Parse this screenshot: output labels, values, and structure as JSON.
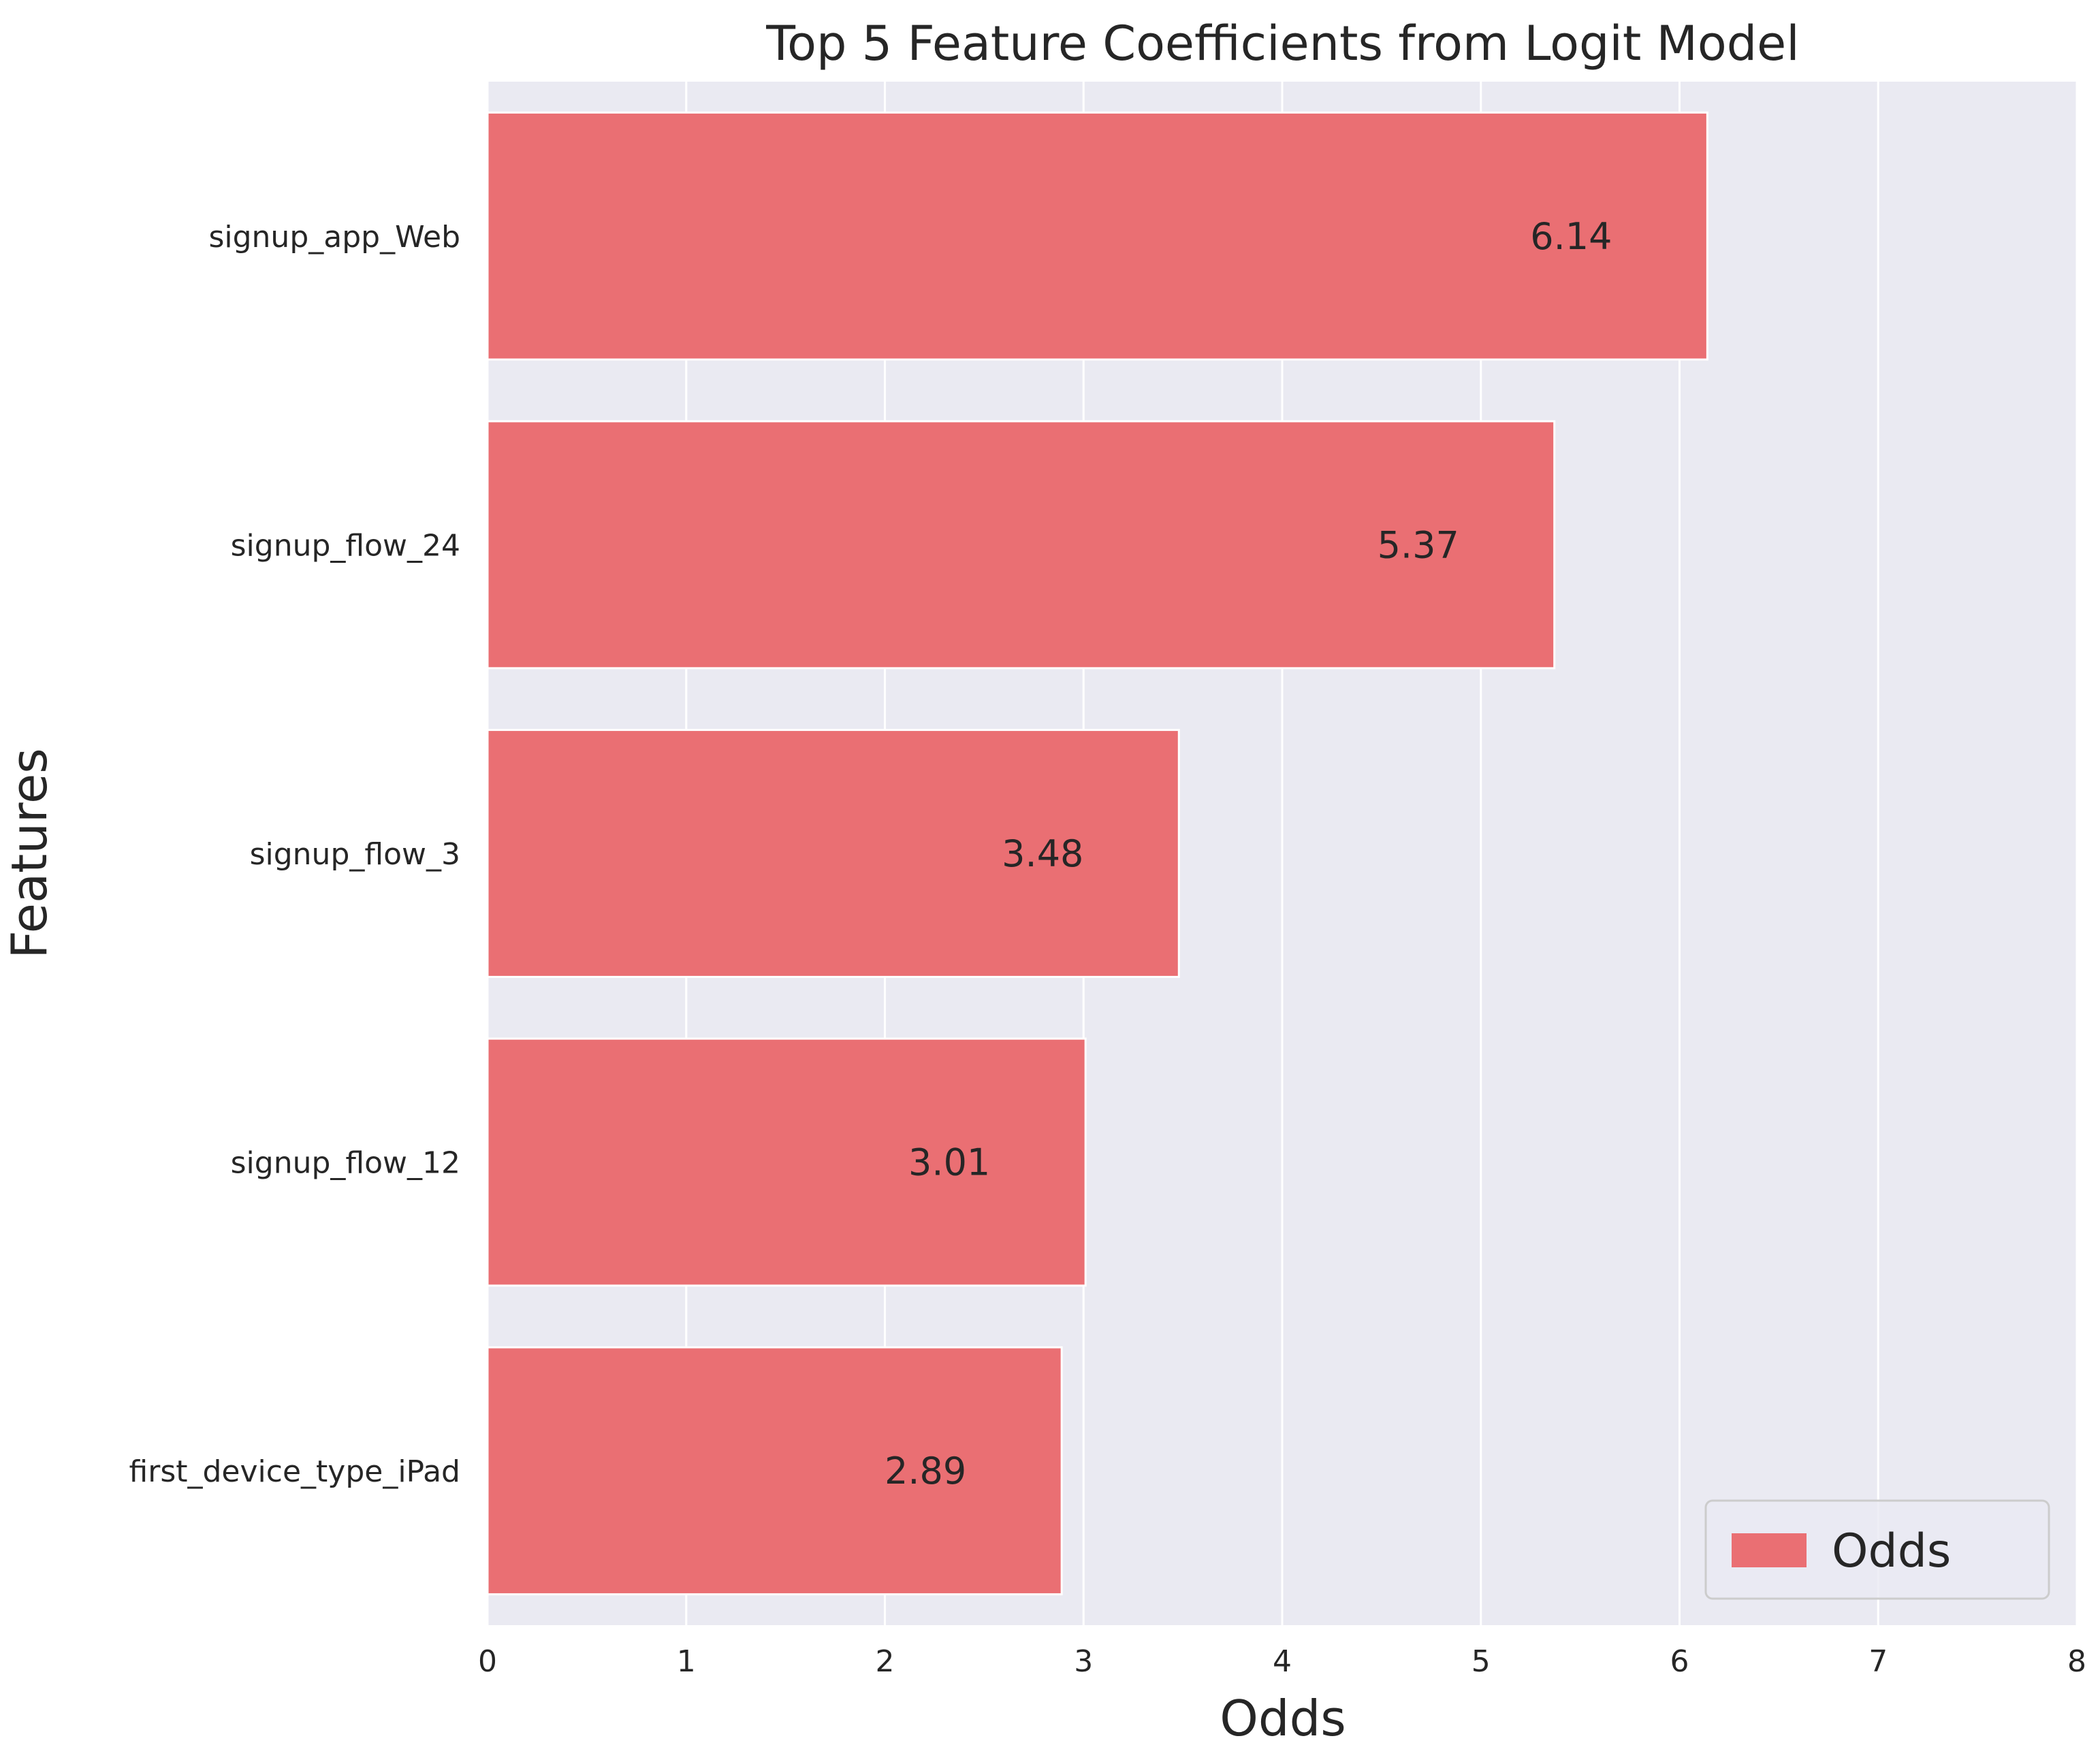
{
  "chart_data": {
    "type": "bar",
    "orientation": "horizontal",
    "title": "Top 5 Feature Coefficients from Logit Model",
    "xlabel": "Odds",
    "ylabel": "Features",
    "categories": [
      "signup_app_Web",
      "signup_flow_24",
      "signup_flow_3",
      "signup_flow_12",
      "first_device_type_iPad"
    ],
    "series": [
      {
        "name": "Odds",
        "values": [
          6.14,
          5.37,
          3.48,
          3.01,
          2.89
        ],
        "color": "#ea6f73"
      }
    ],
    "data_labels": [
      "6.14",
      "5.37",
      "3.48",
      "3.01",
      "2.89"
    ],
    "xlim": [
      0,
      8
    ],
    "xticks": [
      0,
      1,
      2,
      3,
      4,
      5,
      6,
      7,
      8
    ],
    "grid": true,
    "legend_position": "lower-right",
    "colors": {
      "plot_background": "#eaeaf2",
      "grid": "#ffffff",
      "text": "#262626"
    }
  }
}
